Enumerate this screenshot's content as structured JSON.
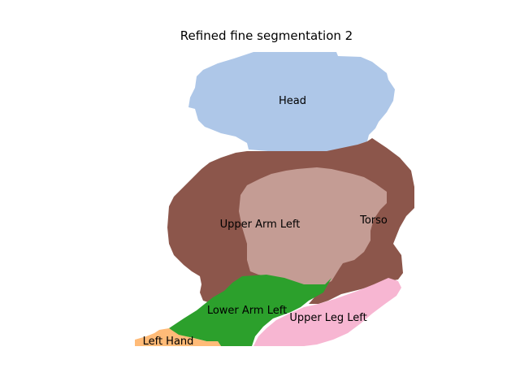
{
  "figure": {
    "title": "Refined fine segmentation 2"
  },
  "segments": [
    {
      "id": "head",
      "label": "Head",
      "color": "#aec7e8"
    },
    {
      "id": "torso",
      "label": "Torso",
      "color": "#8c564b"
    },
    {
      "id": "upper-arm-left",
      "label": "Upper Arm Left",
      "color": "#c49c94"
    },
    {
      "id": "lower-arm-left",
      "label": "Lower Arm Left",
      "color": "#2ca02c"
    },
    {
      "id": "upper-leg-left",
      "label": "Upper Leg Left",
      "color": "#f7b6d2"
    },
    {
      "id": "left-hand",
      "label": "Left Hand",
      "color": "#ffbb78"
    }
  ]
}
